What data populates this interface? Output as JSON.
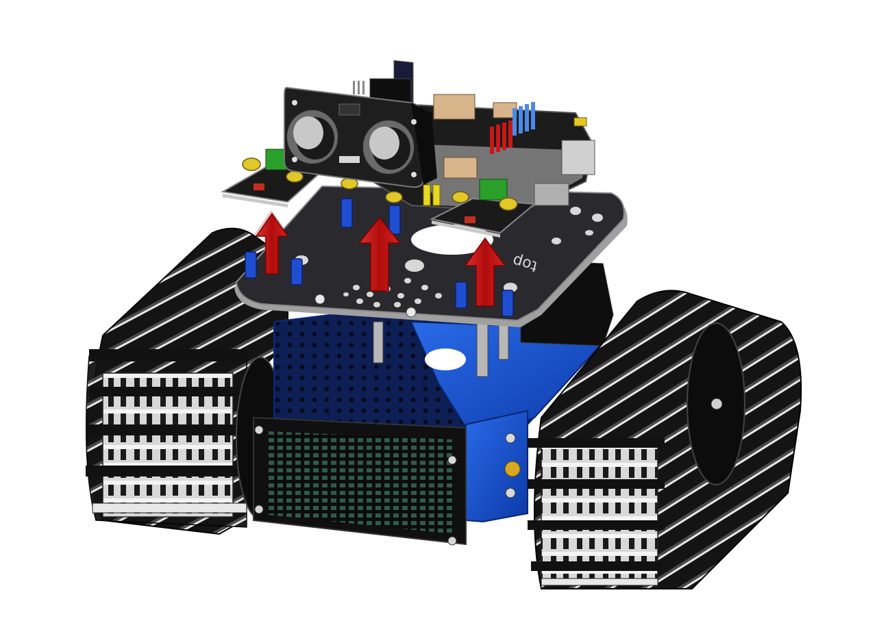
{
  "plate_label": "top",
  "colors": {
    "background": "#ffffff",
    "track": "#1a1a1a",
    "track_edge": "#5a5a5a",
    "chassis_blue": "#1450c8",
    "chassis_blue_dark": "#0a2e80",
    "top_plate": "#2a2a2e",
    "top_plate_edge": "#a8a8a8",
    "pcb": "#1c1c1c",
    "arrow": "#c41414",
    "standoff": "#2050d0",
    "screw_brass": "#d8c020",
    "connector_green": "#2aa02a",
    "led_matrix": "#1a3a30",
    "aluminum": "#c8c8c8"
  },
  "parts": [
    {
      "name": "left-track",
      "icon": "track-icon"
    },
    {
      "name": "right-track",
      "icon": "track-icon"
    },
    {
      "name": "blue-chassis",
      "icon": "chassis-icon"
    },
    {
      "name": "led-matrix-panel",
      "icon": "led-matrix-icon"
    },
    {
      "name": "top-plate",
      "icon": "plate-icon"
    },
    {
      "name": "ultrasonic-sensor",
      "icon": "ultrasonic-icon"
    },
    {
      "name": "control-board",
      "icon": "pcb-icon"
    },
    {
      "name": "line-sensor-boards",
      "icon": "sensor-icon"
    },
    {
      "name": "assembly-arrows",
      "icon": "arrow-up-icon"
    }
  ]
}
